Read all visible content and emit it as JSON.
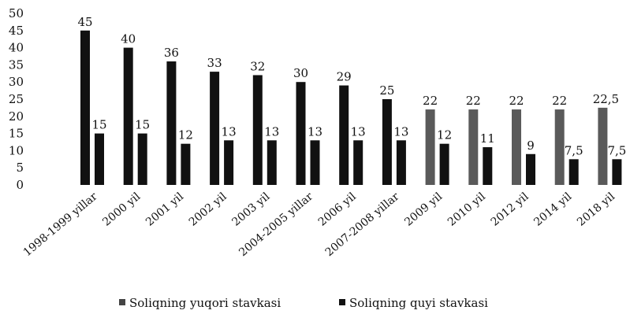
{
  "chart_data": {
    "type": "bar",
    "categories": [
      "1998-1999 yillar",
      "2000 yil",
      "2001 yil",
      "2002 yil",
      "2003 yil",
      "2004-2005 yillar",
      "2006 yil",
      "2007-2008 yillar",
      "2009 yil",
      "2010 yil",
      "2012 yil",
      "2014 yil",
      "2018 yil"
    ],
    "series": [
      {
        "name": "Soliqning yuqori stavkasi",
        "values": [
          45,
          40,
          36,
          33,
          32,
          30,
          29,
          25,
          22,
          22,
          22,
          22,
          22.5
        ],
        "labels": [
          "45",
          "40",
          "36",
          "33",
          "32",
          "30",
          "29",
          "25",
          "22",
          "22",
          "22",
          "22",
          "22,5"
        ],
        "color": "#111111"
      },
      {
        "name": "Soliqning quyi stavkasi",
        "values": [
          15,
          15,
          12,
          13,
          13,
          13,
          13,
          13,
          12,
          11,
          9,
          7.5,
          7.5
        ],
        "labels": [
          "15",
          "15",
          "12",
          "13",
          "13",
          "13",
          "13",
          "13",
          "12",
          "11",
          "9",
          "7,5",
          "7,5"
        ],
        "color": "#111111"
      }
    ],
    "ylim": [
      0,
      50
    ],
    "yticks": [
      "0",
      "5",
      "10",
      "15",
      "20",
      "25",
      "30",
      "35",
      "40",
      "45",
      "50"
    ],
    "title": "",
    "xlabel": "",
    "ylabel": "",
    "grid": false,
    "legend_position": "bottom"
  }
}
